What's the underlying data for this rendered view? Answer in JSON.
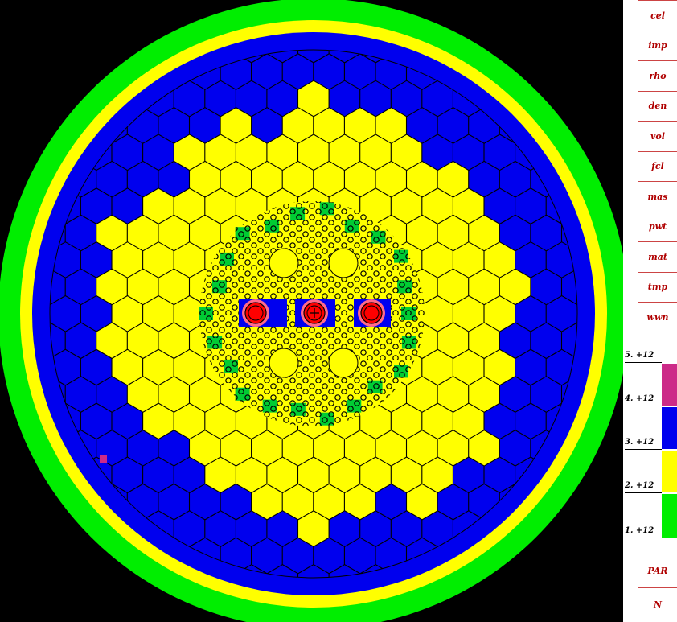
{
  "menu": {
    "items": [
      {
        "label": "cel"
      },
      {
        "label": "imp"
      },
      {
        "label": "rho"
      },
      {
        "label": "den"
      },
      {
        "label": "vol"
      },
      {
        "label": "fcl"
      },
      {
        "label": "mas"
      },
      {
        "label": "pwt"
      },
      {
        "label": "mat"
      },
      {
        "label": "tmp"
      },
      {
        "label": "wwn"
      }
    ]
  },
  "legend": {
    "ticks": [
      "5. +12",
      "4. +12",
      "3. +12",
      "2. +12",
      "1. +12"
    ],
    "colors": [
      "#cc2a88",
      "#0000ee",
      "#ffff00",
      "#00ee00"
    ]
  },
  "bottom_menu": {
    "items": [
      {
        "label": "PAR"
      },
      {
        "label": "N"
      }
    ]
  },
  "plot": {
    "colors": {
      "background": "#000000",
      "outer_ring": "#00ee00",
      "yellow": "#ffff00",
      "blue": "#0000ee",
      "green_cell": "#00cc33",
      "red": "#ff0000",
      "pink": "#ff6b8a",
      "magenta": "#cc2a88"
    }
  }
}
